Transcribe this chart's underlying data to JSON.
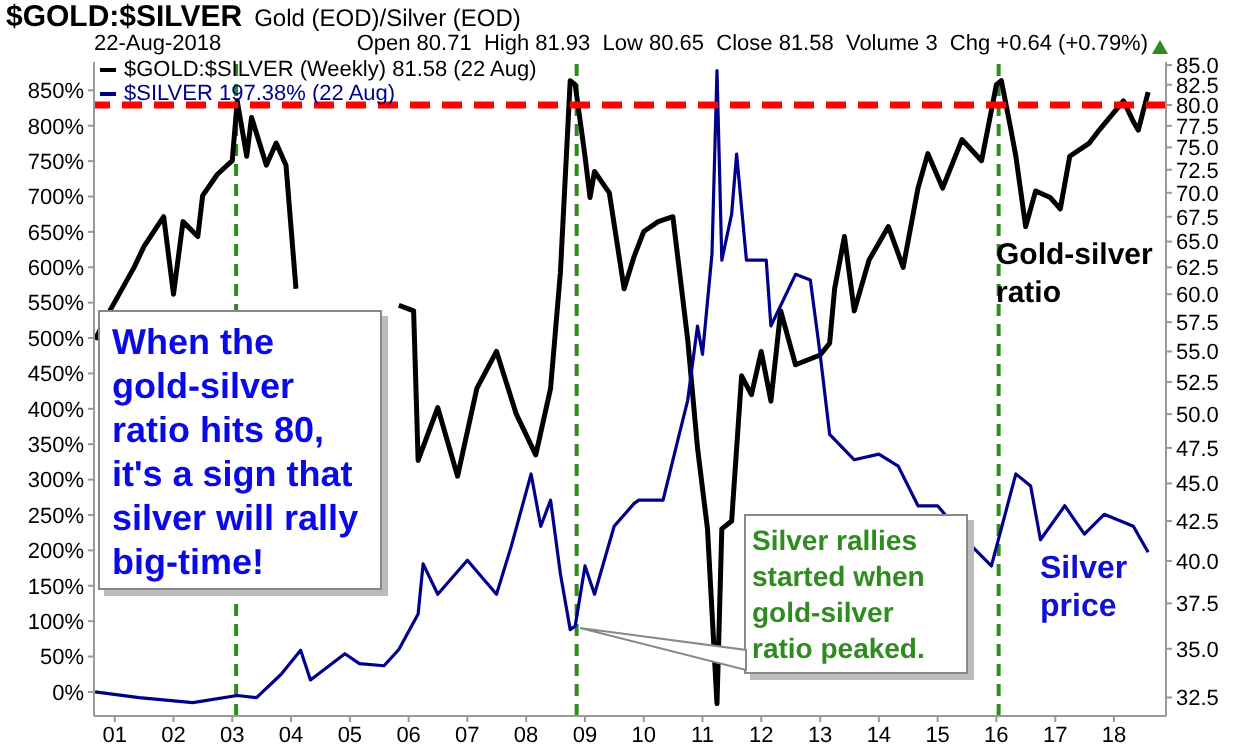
{
  "chart_data": {
    "type": "line",
    "title": "$GOLD:$SILVER",
    "subtitle": "Gold (EOD)/Silver (EOD)",
    "annotations": [
      "22-Aug-2018",
      "Open 80.71  High 81.93  Low 80.65  Close 81.58  Volume 3  Chg +0.64 (+0.79%)",
      "When the gold-silver ratio hits 80, it's a sign that silver will rally big-time!",
      "Silver rallies started when gold-silver ratio peaked.",
      "Gold-silver ratio",
      "Silver price"
    ],
    "xlim": [
      "2000-08-25",
      "2018-11-20"
    ],
    "xticks": [
      {
        "value": "2001-01",
        "label": "01"
      },
      {
        "value": "2002-01",
        "label": "02"
      },
      {
        "value": "2003-01",
        "label": "03"
      },
      {
        "value": "2004-01",
        "label": "04"
      },
      {
        "value": "2005-01",
        "label": "05"
      },
      {
        "value": "2006-01",
        "label": "06"
      },
      {
        "value": "2007-01",
        "label": "07"
      },
      {
        "value": "2008-01",
        "label": "08"
      },
      {
        "value": "2009-01",
        "label": "09"
      },
      {
        "value": "2010-01",
        "label": "10"
      },
      {
        "value": "2011-01",
        "label": "11"
      },
      {
        "value": "2012-01",
        "label": "12"
      },
      {
        "value": "2013-01",
        "label": "13"
      },
      {
        "value": "2014-01",
        "label": "14"
      },
      {
        "value": "2015-01",
        "label": "15"
      },
      {
        "value": "2016-01",
        "label": "16"
      },
      {
        "value": "2017-01",
        "label": "17"
      },
      {
        "value": "2018-01",
        "label": "18"
      }
    ],
    "ylim": [
      -34,
      890
    ],
    "yticks": [
      {
        "value": 0,
        "label": "0%"
      },
      {
        "value": 50,
        "label": "50%"
      },
      {
        "value": 100,
        "label": "100%"
      },
      {
        "value": 150,
        "label": "150%"
      },
      {
        "value": 200,
        "label": "200%"
      },
      {
        "value": 250,
        "label": "250%"
      },
      {
        "value": 300,
        "label": "300%"
      },
      {
        "value": 350,
        "label": "350%"
      },
      {
        "value": 400,
        "label": "400%"
      },
      {
        "value": 450,
        "label": "450%"
      },
      {
        "value": 500,
        "label": "500%"
      },
      {
        "value": 550,
        "label": "550%"
      },
      {
        "value": 600,
        "label": "600%"
      },
      {
        "value": 650,
        "label": "650%"
      },
      {
        "value": 700,
        "label": "700%"
      },
      {
        "value": 750,
        "label": "750%"
      },
      {
        "value": 800,
        "label": "800%"
      },
      {
        "value": 850,
        "label": "850%"
      }
    ],
    "y2lim": [
      31.6,
      85.4
    ],
    "y2ticks": [
      {
        "value": 32.5,
        "label": "32.5"
      },
      {
        "value": 35,
        "label": "35.0"
      },
      {
        "value": 37.5,
        "label": "37.5"
      },
      {
        "value": 40,
        "label": "40.0"
      },
      {
        "value": 42.5,
        "label": "42.5"
      },
      {
        "value": 45,
        "label": "45.0"
      },
      {
        "value": 47.5,
        "label": "47.5"
      },
      {
        "value": 50,
        "label": "50.0"
      },
      {
        "value": 52.5,
        "label": "52.5"
      },
      {
        "value": 55,
        "label": "55.0"
      },
      {
        "value": 57.5,
        "label": "57.5"
      },
      {
        "value": 60,
        "label": "60.0"
      },
      {
        "value": 62.5,
        "label": "62.5"
      },
      {
        "value": 65,
        "label": "65.0"
      },
      {
        "value": 67.5,
        "label": "67.5"
      },
      {
        "value": 70,
        "label": "70.0"
      },
      {
        "value": 72.5,
        "label": "72.5"
      },
      {
        "value": 75,
        "label": "75.0"
      },
      {
        "value": 77.5,
        "label": "77.5"
      },
      {
        "value": 80,
        "label": "80.0"
      },
      {
        "value": 82.5,
        "label": "82.5"
      },
      {
        "value": 85,
        "label": "85.0"
      }
    ],
    "log": "y2",
    "legend": "top left",
    "marker": "none",
    "line_style": "solid",
    "ref_lines": [
      {
        "axis": "y2",
        "value": 80,
        "color": "#ff0000",
        "line_style": "dashed"
      },
      {
        "axis": "x",
        "value": "2003-01-25",
        "color": "#2e8b1e",
        "line_style": "dashed"
      },
      {
        "axis": "x",
        "value": "2008-11-10",
        "color": "#2e8b1e",
        "line_style": "dashed"
      },
      {
        "axis": "x",
        "value": "2016-01-15",
        "color": "#2e8b1e",
        "line_style": "dashed"
      }
    ],
    "series": [
      {
        "name": "$GOLD:$SILVER (Weekly) 81.58 (22 Aug)",
        "color": "#000000",
        "axis": "y2",
        "x": [
          "2000-09",
          "2000-12",
          "2001-05",
          "2001-07",
          "2001-11",
          "2002-01",
          "2002-03",
          "2002-06",
          "2002-07",
          "2002-10",
          "2003-01",
          "2003-02",
          "2003-04",
          "2003-05",
          "2003-08",
          "2003-10",
          "2003-12",
          "2004-02",
          "2004-06",
          "2005-11",
          "2006-02",
          "2006-03",
          "2006-07",
          "2006-11",
          "2007-03",
          "2007-07",
          "2007-11",
          "2008-03",
          "2008-06",
          "2008-08",
          "2008-10",
          "2008-11",
          "2009-01",
          "2009-02",
          "2009-03",
          "2009-06",
          "2009-09",
          "2009-11",
          "2010-01",
          "2010-04",
          "2010-07",
          "2010-10",
          "2010-12",
          "2011-02",
          "2011-04",
          "2011-05",
          "2011-07",
          "2011-09",
          "2011-11",
          "2012-01",
          "2012-03",
          "2012-05",
          "2012-08",
          "2013-01",
          "2013-03",
          "2013-04",
          "2013-06",
          "2013-08",
          "2013-11",
          "2014-03",
          "2014-06",
          "2014-09",
          "2014-11",
          "2015-02",
          "2015-06",
          "2015-10",
          "2016-01",
          "2016-02",
          "2016-04",
          "2016-05",
          "2016-07",
          "2016-09",
          "2016-12",
          "2017-02",
          "2017-04",
          "2017-08",
          "2017-10",
          "2018-03",
          "2018-05",
          "2018-06",
          "2018-08"
        ],
        "values": [
          56,
          58.5,
          62.5,
          64.5,
          67.5,
          60,
          67,
          65.5,
          69.7,
          72,
          73.5,
          80.5,
          74,
          78.5,
          73,
          75.5,
          73,
          60.5,
          null,
          59,
          58.5,
          46.6,
          50.5,
          45.5,
          52,
          55,
          50,
          47,
          52,
          62,
          83,
          82.5,
          74,
          69.5,
          72.3,
          70,
          60.5,
          63.5,
          66,
          67,
          67.5,
          56,
          47.5,
          42,
          32.2,
          42,
          42.5,
          53,
          51.5,
          55,
          51,
          58.5,
          53.9,
          54.7,
          55.7,
          60.5,
          65.5,
          58.5,
          63.2,
          66.5,
          62.5,
          70.5,
          74.3,
          70.5,
          75.9,
          73.5,
          82.5,
          83,
          77,
          74,
          66.5,
          70.2,
          69.5,
          68.3,
          74,
          75.5,
          77,
          80.5,
          78,
          77,
          81.58
        ]
      },
      {
        "name": "$SILVER 197.38% (22 Aug)",
        "color": "#00008b",
        "x": [
          "2000-09",
          "2001-06",
          "2002-05",
          "2003-02",
          "2003-06",
          "2003-11",
          "2004-03",
          "2004-05",
          "2004-12",
          "2005-03",
          "2005-08",
          "2005-11",
          "2006-03",
          "2006-04",
          "2006-07",
          "2007-01",
          "2007-07",
          "2007-10",
          "2008-02",
          "2008-04",
          "2008-06",
          "2008-08",
          "2008-10",
          "2008-11",
          "2009-01",
          "2009-03",
          "2009-07",
          "2009-11",
          "2009-12",
          "2010-05",
          "2010-08",
          "2010-10",
          "2010-12",
          "2011-01",
          "2011-03",
          "2011-04",
          "2011-05",
          "2011-07",
          "2011-08",
          "2011-10",
          "2012-02",
          "2012-03",
          "2012-08",
          "2012-11",
          "2013-01",
          "2013-03",
          "2013-08",
          "2014-01",
          "2014-05",
          "2014-09",
          "2015-01",
          "2015-08",
          "2015-12",
          "2016-05",
          "2016-08",
          "2016-10",
          "2017-03",
          "2017-07",
          "2017-11",
          "2018-05",
          "2018-08"
        ],
        "values": [
          0,
          -8,
          -15,
          -5,
          -8,
          25,
          59,
          17,
          54,
          40,
          37,
          60,
          110,
          181,
          138,
          186,
          138,
          206,
          308,
          234,
          271,
          167,
          88,
          93,
          178,
          138,
          234,
          266,
          271,
          271,
          356,
          412,
          517,
          477,
          619,
          878,
          610,
          675,
          760,
          610,
          610,
          517,
          590,
          582,
          477,
          364,
          328,
          336,
          319,
          263,
          263,
          206,
          178,
          308,
          291,
          215,
          263,
          223,
          251,
          234,
          197.38
        ]
      }
    ]
  }
}
